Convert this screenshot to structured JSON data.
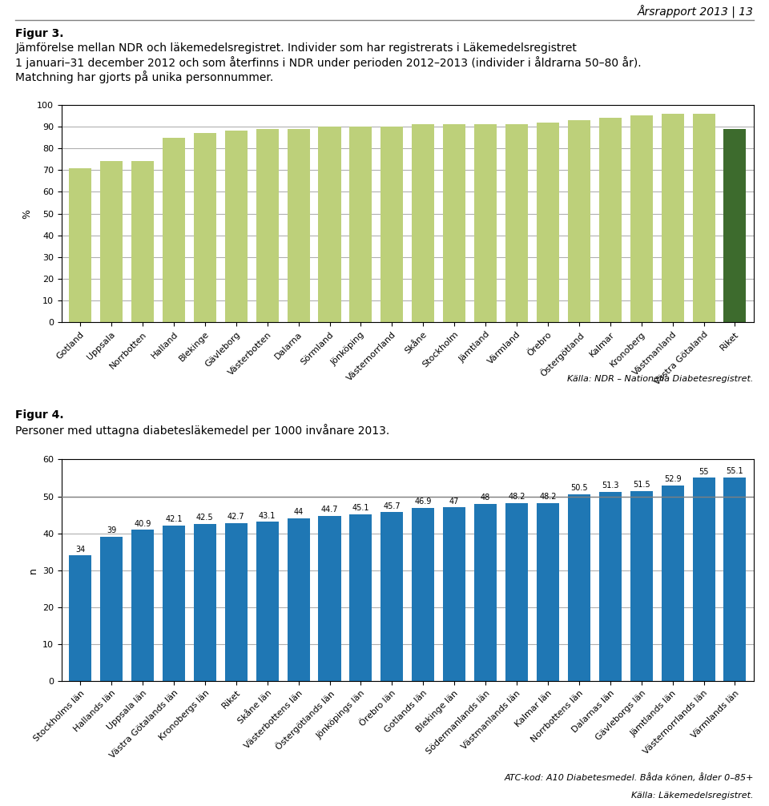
{
  "header": "Årsrapport 2013 | 13",
  "chart_data": [
    {
      "type": "bar",
      "title": "Figur 3.",
      "subtitle": "Jämförelse mellan NDR och läkemedelsregistret. Individer som har registrerats i Läkemedelsregistret\n1 januari–31 december 2012 och som återfinns i NDR under perioden 2012–2013 (individer i åldrarna 50–80 år).\nMatchning har gjorts på unika personnummer.",
      "y_label": "%",
      "categories": [
        "Gotland",
        "Uppsala",
        "Norrbotten",
        "Halland",
        "Blekinge",
        "Gävleborg",
        "Västerbotten",
        "Dalarna",
        "Sörmland",
        "Jönköping",
        "Västernorrland",
        "Skåne",
        "Stockholm",
        "Jämtland",
        "Värmland",
        "Örebro",
        "Östergötland",
        "Kalmar",
        "Kronoberg",
        "Västmanland",
        "Västra Götaland",
        "Riket"
      ],
      "values": [
        71,
        74,
        74,
        85,
        87,
        88,
        89,
        89,
        90,
        90,
        90,
        91,
        91,
        91,
        91,
        92,
        93,
        94,
        95,
        96,
        96,
        89
      ],
      "colors": [
        "#bdd07a",
        "#bdd07a",
        "#bdd07a",
        "#bdd07a",
        "#bdd07a",
        "#bdd07a",
        "#bdd07a",
        "#bdd07a",
        "#bdd07a",
        "#bdd07a",
        "#bdd07a",
        "#bdd07a",
        "#bdd07a",
        "#bdd07a",
        "#bdd07a",
        "#bdd07a",
        "#bdd07a",
        "#bdd07a",
        "#bdd07a",
        "#bdd07a",
        "#bdd07a",
        "#3d6b2d"
      ],
      "ylim": [
        0,
        100
      ],
      "yticks": [
        0,
        10,
        20,
        30,
        40,
        50,
        60,
        70,
        80,
        90,
        100
      ],
      "grid": true,
      "annotations": [
        "Källa: NDR – Nationella Diabetesregistret."
      ]
    },
    {
      "type": "bar",
      "title": "Figur 4.",
      "subtitle": "Personer med uttagna diabetesläkemedel per 1000 invånare 2013.",
      "y_label": "n",
      "categories": [
        "Stockholms län",
        "Hallands län",
        "Uppsala län",
        "Västra Götalands län",
        "Kronobergs län",
        "Riket",
        "Skåne län",
        "Västerbottens län",
        "Östergötlands län",
        "Jönköpings län",
        "Örebro län",
        "Gotlands län",
        "Blekinge län",
        "Södermanlands län",
        "Västmanlands län",
        "Kalmar län",
        "Norrbottens län",
        "Dalarnas län",
        "Gävleborgs län",
        "Jämtlands län",
        "Västernorrlands län",
        "Värmlands län"
      ],
      "values": [
        34,
        39,
        40.9,
        42.1,
        42.5,
        42.7,
        43.1,
        44,
        44.7,
        45.1,
        45.7,
        46.9,
        47,
        48,
        48.2,
        48.2,
        50.5,
        51.3,
        51.5,
        52.9,
        55,
        55.1
      ],
      "ylim": [
        0,
        60
      ],
      "yticks": [
        0,
        10,
        20,
        30,
        40,
        50,
        60
      ],
      "reference_line": 50,
      "grid": true,
      "data_labels": true,
      "annotations": [
        "ATC-kod: A10 Diabetesmedel. Båda könen, ålder 0–85+",
        "Källa: Läkemedelsregistret."
      ]
    }
  ]
}
